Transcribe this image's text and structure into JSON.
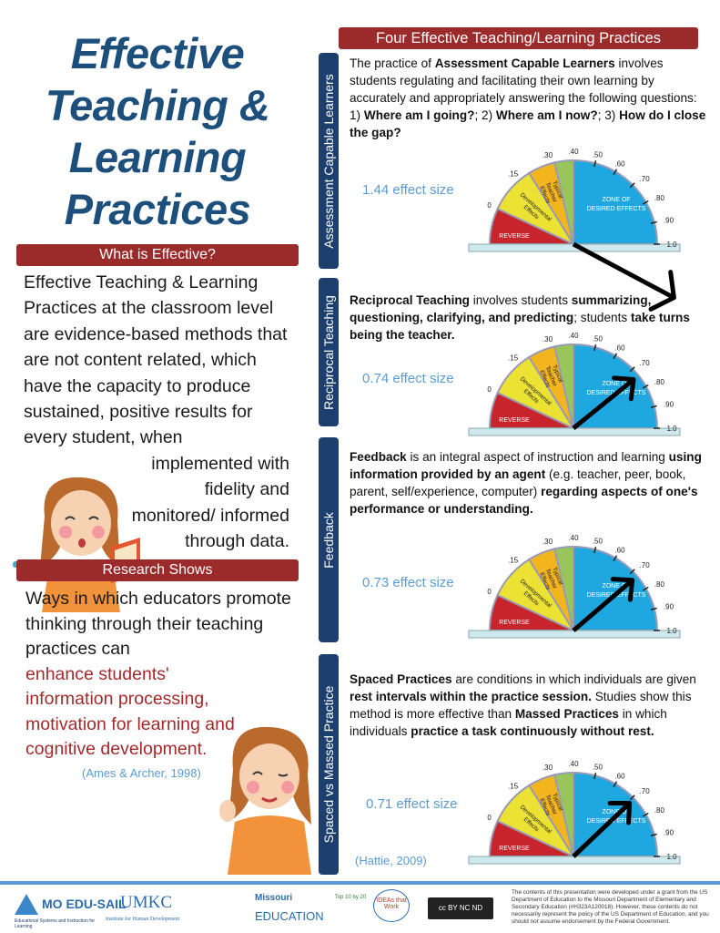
{
  "left": {
    "title": "Effective Teaching & Learning Practices",
    "what_header": "What is Effective?",
    "what_text_a": "Effective Teaching & Learning  Practices at the classroom level are evidence-based methods that are not content related, which have the capacity to produce sustained, positive results for every student, when",
    "what_text_b": "implemented with fidelity and monitored/ informed through data.",
    "research_header": "Research Shows",
    "research_text": "Ways in which educators promote thinking through their teaching practices can",
    "research_highlight": "enhance students' information processing, motivation for learning and cognitive development.",
    "citation": "(Ames & Archer, 1998)"
  },
  "right": {
    "header": "Four Effective Teaching/Learning Practices",
    "citation": "(Hattie, 2009)",
    "gauge_labels": {
      "reverse": "REVERSE",
      "developmental": "Developmental Effects",
      "typical": "Typical Teacher Effects",
      "zone": "ZONE OF DESIRED EFFECTS"
    },
    "ticks": [
      "0",
      ".15",
      ".30",
      ".40",
      ".50",
      ".60",
      ".70",
      ".80",
      ".90",
      "1.0"
    ],
    "colors": {
      "reverse": "#c8242b",
      "developmental": "#ece234",
      "typical": "#f2b51d",
      "green": "#9ac55a",
      "zone": "#1fa8e0",
      "bar": "#1d3f6e",
      "accent_red": "#9b2a2a"
    },
    "sections": [
      {
        "label": "Assessment Capable Learners",
        "effect_size": 1.44,
        "effect_label": "1.44 effect size",
        "html": "The practice  of <b>Assessment Capable Learners</b> involves students regulating and facilitating their own learning by accurately and appropriately answering the following questions:  1) <b>Where am I going?</b>; 2) <b>Where am I now?</b>; 3) <b>How do I close the gap?</b>"
      },
      {
        "label": "Reciprocal Teaching",
        "effect_size": 0.74,
        "effect_label": "0.74 effect size",
        "html": "<b>Reciprocal Teaching</b> involves students <b>summarizing, questioning, clarifying, and predicting</b>; students <b>take turns being the teacher.</b>"
      },
      {
        "label": "Feedback",
        "effect_size": 0.73,
        "effect_label": "0.73 effect size",
        "html": "<b>Feedback</b> is an integral aspect of instruction and learning <b>using information provided by an agent</b> (e.g. teacher, peer, book, parent, self/experience, computer) <b>regarding aspects of one's performance or understanding.</b>"
      },
      {
        "label": "Spaced vs Massed Practice",
        "effect_size": 0.71,
        "effect_label": "0.71 effect size",
        "html": "<b>Spaced Practices</b> are conditions in which individuals are given <b>rest intervals within the practice session.</b> Studies show this method is more effective than <b>Massed Practices</b> in which individuals <b>practice a task continuously without rest.</b>"
      }
    ]
  },
  "footer": {
    "mo_edusail": "MO EDU-SAIL",
    "mo_edusail_sub": "Educational Systems and Instruction for Learning",
    "umkc": "UMKC",
    "umkc_sub": "Institute for Human Development",
    "missouri": "Missouri",
    "missouri_sub": "EDUCATION",
    "top10": "Top 10 by 20",
    "ideas": "IDEAs that Work",
    "cc": "cc BY NC ND",
    "disclaimer": "The contents of this presentation were developed under a grant from the US Department of Education to the Missouri Department of Elementary and Secondary Education (#H323A120018). However, these contents do not necessarily represent the policy of the US Department of Education, and you should not assume endorsement by the Federal Government."
  }
}
